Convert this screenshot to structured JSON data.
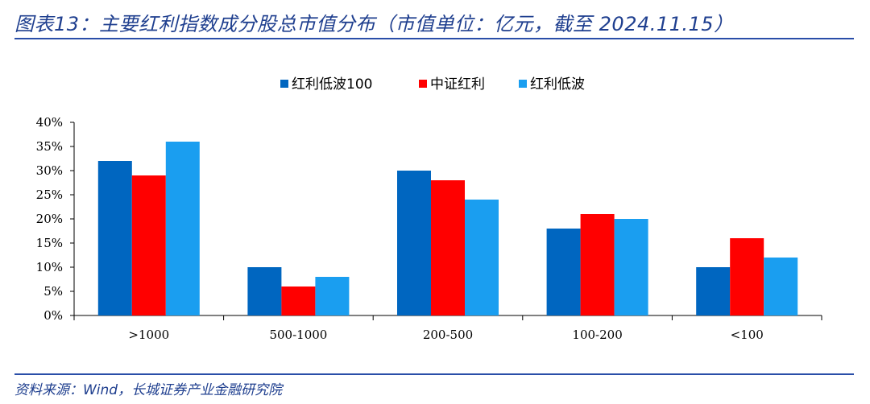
{
  "header": {
    "title": "图表13：主要红利指数成分股总市值分布（市值单位：亿元，截至 2024.11.15）"
  },
  "footer": {
    "source": "资料来源：Wind，长城证券产业金融研究院"
  },
  "chart_data": {
    "type": "bar",
    "title": "",
    "xlabel": "",
    "ylabel": "",
    "categories": [
      ">1000",
      "500-1000",
      "200-500",
      "100-200",
      "<100"
    ],
    "series": [
      {
        "name": "红利低波100",
        "color": "#0066c0",
        "values": [
          32,
          10,
          30,
          18,
          10
        ]
      },
      {
        "name": "中证红利",
        "color": "#ff0000",
        "values": [
          29,
          6,
          28,
          21,
          16
        ]
      },
      {
        "name": "红利低波",
        "color": "#1a9ef0",
        "values": [
          36,
          8,
          24,
          20,
          12
        ]
      }
    ],
    "ylim": [
      0,
      40
    ],
    "yticks": [
      "0%",
      "5%",
      "10%",
      "15%",
      "20%",
      "25%",
      "30%",
      "35%",
      "40%"
    ],
    "value_unit": "%",
    "grid": false,
    "legend_position": "top-center"
  }
}
